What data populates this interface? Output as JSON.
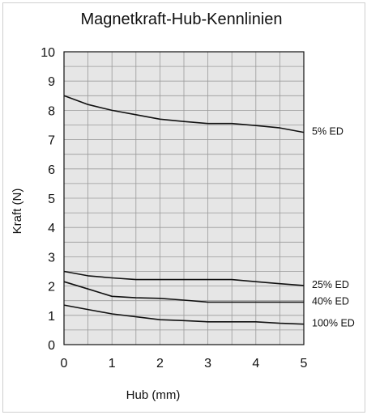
{
  "chart_data": {
    "type": "line",
    "title": "Magnetkraft-Hub-Kennlinien",
    "xlabel": "Hub (mm)",
    "ylabel": "Kraft (N)",
    "xlim": [
      0,
      5
    ],
    "ylim": [
      0,
      10
    ],
    "xticks": [
      "0",
      "1",
      "2",
      "3",
      "4",
      "5"
    ],
    "yticks": [
      "0",
      "1",
      "2",
      "3",
      "4",
      "5",
      "6",
      "7",
      "8",
      "9",
      "10"
    ],
    "grid": true,
    "plot_background": "#e6e6e6",
    "series": [
      {
        "name": "5% ED",
        "x": [
          0,
          0.5,
          1,
          1.5,
          2,
          2.5,
          3,
          3.5,
          4,
          4.5,
          5
        ],
        "y": [
          8.5,
          8.2,
          8.0,
          7.85,
          7.7,
          7.62,
          7.55,
          7.55,
          7.48,
          7.4,
          7.25
        ],
        "color": "#111111"
      },
      {
        "name": "25% ED",
        "x": [
          0,
          0.5,
          1,
          1.5,
          2,
          2.5,
          3,
          3.5,
          4,
          4.5,
          5
        ],
        "y": [
          2.5,
          2.35,
          2.28,
          2.22,
          2.22,
          2.22,
          2.22,
          2.22,
          2.15,
          2.08,
          2.02
        ],
        "color": "#111111"
      },
      {
        "name": "40% ED",
        "x": [
          0,
          0.5,
          1,
          1.5,
          2,
          2.5,
          3,
          3.5,
          4,
          4.5,
          5
        ],
        "y": [
          2.15,
          1.9,
          1.65,
          1.6,
          1.58,
          1.52,
          1.45,
          1.45,
          1.45,
          1.45,
          1.45
        ],
        "color": "#111111"
      },
      {
        "name": "100% ED",
        "x": [
          0,
          0.5,
          1,
          1.5,
          2,
          2.5,
          3,
          3.5,
          4,
          4.5,
          5
        ],
        "y": [
          1.35,
          1.2,
          1.05,
          0.95,
          0.85,
          0.82,
          0.78,
          0.78,
          0.78,
          0.73,
          0.7
        ],
        "color": "#111111"
      }
    ]
  }
}
